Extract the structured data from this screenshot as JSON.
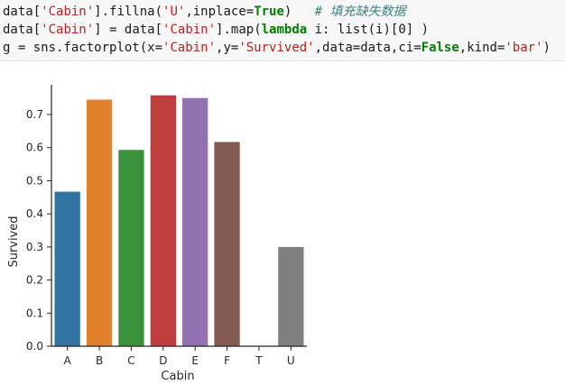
{
  "code_cell": {
    "lines": [
      [
        {
          "t": "data[",
          "c": "plain"
        },
        {
          "t": "'Cabin'",
          "c": "str"
        },
        {
          "t": "].fillna(",
          "c": "plain"
        },
        {
          "t": "'U'",
          "c": "str"
        },
        {
          "t": ",inplace=",
          "c": "plain"
        },
        {
          "t": "True",
          "c": "kw"
        },
        {
          "t": ")   ",
          "c": "plain"
        },
        {
          "t": "# 填充缺失数据",
          "c": "cm"
        }
      ],
      [
        {
          "t": "data[",
          "c": "plain"
        },
        {
          "t": "'Cabin'",
          "c": "str"
        },
        {
          "t": "] = data[",
          "c": "plain"
        },
        {
          "t": "'Cabin'",
          "c": "str"
        },
        {
          "t": "].map(",
          "c": "plain"
        },
        {
          "t": "lambda",
          "c": "kw"
        },
        {
          "t": " i: list(i)[0] )",
          "c": "plain"
        }
      ],
      [
        {
          "t": "g = sns.factorplot(x=",
          "c": "plain"
        },
        {
          "t": "'Cabin'",
          "c": "str"
        },
        {
          "t": ",y=",
          "c": "plain"
        },
        {
          "t": "'Survived'",
          "c": "str"
        },
        {
          "t": ",data=data,ci=",
          "c": "plain"
        },
        {
          "t": "False",
          "c": "kw"
        },
        {
          "t": ",kind=",
          "c": "plain"
        },
        {
          "t": "'bar'",
          "c": "str"
        },
        {
          "t": ")",
          "c": "plain"
        }
      ]
    ]
  },
  "chart_data": {
    "type": "bar",
    "categories": [
      "A",
      "B",
      "C",
      "D",
      "E",
      "F",
      "T",
      "U"
    ],
    "values": [
      0.467,
      0.745,
      0.593,
      0.758,
      0.75,
      0.617,
      0.0,
      0.3
    ],
    "colors": [
      "#3274a1",
      "#e1812c",
      "#3a923a",
      "#c03d3e",
      "#9372b2",
      "#845b53",
      "#d684bd",
      "#7f7f7f"
    ],
    "yticks": [
      "0.0",
      "0.1",
      "0.2",
      "0.3",
      "0.4",
      "0.5",
      "0.6",
      "0.7"
    ],
    "xlabel": "Cabin",
    "ylabel": "Survived",
    "ylim": [
      0,
      0.79
    ],
    "grid": false,
    "legend": "none"
  }
}
